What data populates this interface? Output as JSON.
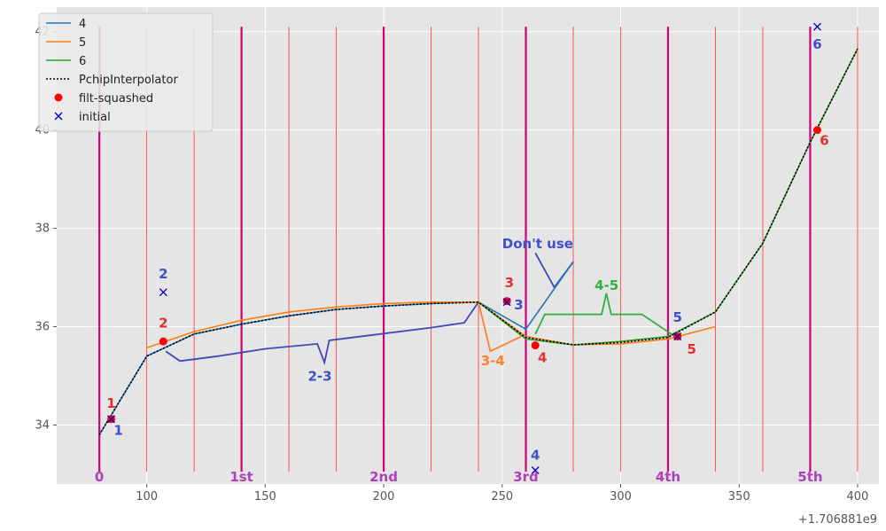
{
  "chart_data": {
    "type": "line",
    "xlim": [
      62,
      409
    ],
    "ylim": [
      32.8,
      42.5
    ],
    "x_offset_label": "+1.706881e9",
    "x_ticks": [
      100,
      150,
      200,
      250,
      300,
      350,
      400
    ],
    "x_tick_labels": [
      "100",
      "150",
      "200",
      "250",
      "300",
      "350",
      "400"
    ],
    "y_ticks": [
      34,
      36,
      38,
      40,
      42
    ],
    "y_tick_labels": [
      "34",
      "36",
      "38",
      "40",
      "42"
    ],
    "grid": true,
    "legend_position": "top-left",
    "legend": [
      {
        "label": "4",
        "color": "#1f77b4",
        "style": "line"
      },
      {
        "label": "5",
        "color": "#ff7f0e",
        "style": "line"
      },
      {
        "label": "6",
        "color": "#2ca02c",
        "style": "line"
      },
      {
        "label": "PchipInterpolator",
        "color": "#000000",
        "style": "dotted"
      },
      {
        "label": "filt-squashed",
        "color": "#ff0000",
        "style": "dot"
      },
      {
        "label": "initial",
        "color": "#0000cc",
        "style": "x"
      }
    ],
    "series": [
      {
        "name": "4",
        "color": "#1f77b4",
        "x": [
          80,
          100,
          120,
          140,
          160,
          180,
          200,
          220,
          240,
          260,
          280
        ],
        "y": [
          33.8,
          35.4,
          35.85,
          36.05,
          36.22,
          36.35,
          36.42,
          36.47,
          36.5,
          35.95,
          37.32
        ]
      },
      {
        "name": "5",
        "color": "#ff7f0e",
        "x": [
          100,
          120,
          140,
          160,
          180,
          200,
          220,
          240,
          260,
          280,
          300,
          320,
          340
        ],
        "y": [
          35.57,
          35.9,
          36.13,
          36.3,
          36.4,
          36.47,
          36.5,
          36.5,
          35.8,
          35.63,
          35.65,
          35.75,
          36.0
        ]
      },
      {
        "name": "6",
        "color": "#2ca02c",
        "x": [
          240,
          260,
          280,
          300,
          320,
          340,
          360,
          380,
          400
        ],
        "y": [
          36.5,
          35.75,
          35.63,
          35.7,
          35.8,
          36.3,
          37.7,
          39.75,
          41.65
        ]
      },
      {
        "name": "PchipInterpolator",
        "color": "#000000",
        "x": [
          80,
          100,
          120,
          140,
          160,
          180,
          200,
          220,
          240,
          260,
          280,
          300,
          320,
          340,
          360,
          380,
          400
        ],
        "y": [
          33.8,
          35.4,
          35.85,
          36.05,
          36.22,
          36.35,
          36.42,
          36.47,
          36.5,
          35.78,
          35.63,
          35.68,
          35.78,
          36.3,
          37.7,
          39.75,
          41.65
        ]
      }
    ],
    "filt_squashed": {
      "x": [
        85,
        107,
        252,
        264,
        324,
        383
      ],
      "y": [
        34.12,
        35.7,
        36.52,
        35.62,
        35.8,
        40.0
      ]
    },
    "initial": {
      "x": [
        85,
        107,
        252,
        264,
        324,
        383
      ],
      "y": [
        34.12,
        36.7,
        36.5,
        33.08,
        35.8,
        42.1
      ]
    },
    "thin_vlines_x": [
      100,
      120,
      160,
      180,
      220,
      240,
      280,
      300,
      340,
      360,
      400
    ],
    "thick_vlines_x": [
      80,
      140,
      200,
      260,
      320,
      380
    ],
    "vline_ymax": 42.1,
    "period_labels": [
      {
        "text": "0",
        "x": 80
      },
      {
        "text": "1st",
        "x": 140
      },
      {
        "text": "2nd",
        "x": 200
      },
      {
        "text": "3rd",
        "x": 260
      },
      {
        "text": "4th",
        "x": 320
      },
      {
        "text": "5th",
        "x": 380
      }
    ],
    "annotations_red": [
      {
        "text": "1",
        "x": 85,
        "y": 34.35
      },
      {
        "text": "2",
        "x": 107,
        "y": 35.98
      },
      {
        "text": "3",
        "x": 253,
        "y": 36.8
      },
      {
        "text": "4",
        "x": 267,
        "y": 35.28
      },
      {
        "text": "5",
        "x": 330,
        "y": 35.45
      },
      {
        "text": "6",
        "x": 386,
        "y": 39.7
      }
    ],
    "annotations_blue": [
      {
        "text": "1",
        "x": 88,
        "y": 33.8
      },
      {
        "text": "2",
        "x": 107,
        "y": 36.98
      },
      {
        "text": "3",
        "x": 257,
        "y": 36.35
      },
      {
        "text": "4",
        "x": 264,
        "y": 33.3
      },
      {
        "text": "5",
        "x": 324,
        "y": 36.1
      },
      {
        "text": "6",
        "x": 383,
        "y": 41.65
      }
    ],
    "annotation_dont_use": {
      "text": "Don't use",
      "x": 250,
      "y": 37.6
    },
    "dont_use_pointer": {
      "x": [
        264,
        272,
        280
      ],
      "y": [
        37.5,
        36.8,
        37.32
      ]
    },
    "annotation_2_3": {
      "text": "2-3",
      "x": 168,
      "y": 34.9,
      "color": "#4050c0"
    },
    "annotation_3_4": {
      "text": "3-4",
      "x": 241,
      "y": 35.22,
      "color": "#ff8030"
    },
    "annotation_4_5": {
      "text": "4-5",
      "x": 289,
      "y": 36.75,
      "color": "#30b040"
    },
    "path_2_3": {
      "color": "#3f48b8",
      "x": [
        108,
        114,
        130,
        150,
        172,
        175,
        177,
        200,
        220,
        234,
        240
      ],
      "y": [
        35.5,
        35.3,
        35.4,
        35.55,
        35.65,
        35.27,
        35.72,
        35.86,
        35.98,
        36.08,
        36.5
      ]
    },
    "path_3_4": {
      "color": "#ff8030",
      "x": [
        240,
        245,
        258
      ],
      "y": [
        36.5,
        35.5,
        35.8
      ]
    },
    "path_4_5": {
      "color": "#30b040",
      "x": [
        264,
        268,
        287,
        292,
        294,
        296,
        309,
        322
      ],
      "y": [
        35.85,
        36.25,
        36.25,
        36.25,
        36.68,
        36.25,
        36.25,
        35.83
      ]
    }
  }
}
